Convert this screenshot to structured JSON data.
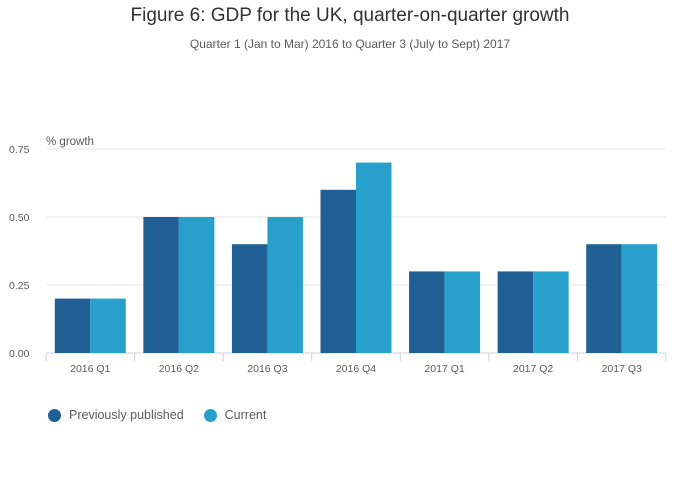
{
  "chart_data": {
    "type": "bar",
    "title": "Figure 6: GDP for the UK, quarter-on-quarter growth",
    "subtitle": "Quarter 1 (Jan to Mar) 2016 to Quarter 3 (July to Sept) 2017",
    "xlabel": "",
    "ylabel": "% growth",
    "categories": [
      "2016 Q1",
      "2016 Q2",
      "2016 Q3",
      "2016 Q4",
      "2017 Q1",
      "2017 Q2",
      "2017 Q3"
    ],
    "series": [
      {
        "name": "Previously published",
        "color": "#206095",
        "values": [
          0.2,
          0.5,
          0.4,
          0.6,
          0.3,
          0.3,
          0.4
        ]
      },
      {
        "name": "Current",
        "color": "#27a0cc",
        "values": [
          0.2,
          0.5,
          0.5,
          0.7,
          0.3,
          0.3,
          0.4
        ]
      }
    ],
    "ylim": [
      0,
      0.75
    ],
    "yticks": [
      "0.00",
      "0.25",
      "0.50",
      "0.75"
    ],
    "grid": true,
    "legend_position": "bottom-left"
  }
}
